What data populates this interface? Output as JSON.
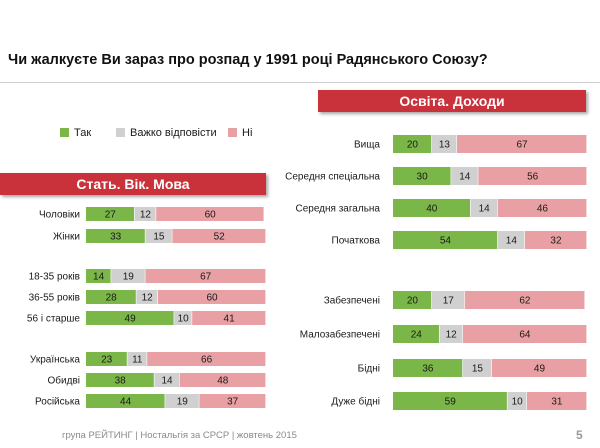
{
  "title": "Чи жалкуєте Ви зараз про розпад у 1991 році Радянського Союзу?",
  "banners": {
    "left": "Стать. Вік. Мова",
    "right": "Освіта. Доходи"
  },
  "legend": [
    {
      "label": "Так",
      "color": "#7ab648"
    },
    {
      "label": "Важко відповісти",
      "color": "#d0d0d0"
    },
    {
      "label": "Ні",
      "color": "#e8a0a4"
    }
  ],
  "footer": "група РЕЙТИНГ | Ностальгія за СРСР | жовтень 2015",
  "page_number": "5",
  "chart_data": [
    {
      "type": "bar",
      "stacked": true,
      "orientation": "horizontal",
      "title": "Стать. Вік. Мова",
      "categories": [
        "Чоловіки",
        "Жінки",
        "18-35 років",
        "36-55 років",
        "56 і старше",
        "Українська",
        "Обидві",
        "Російська"
      ],
      "series": [
        {
          "name": "Так",
          "values": [
            27,
            33,
            14,
            28,
            49,
            23,
            38,
            44
          ]
        },
        {
          "name": "Важко відповісти",
          "values": [
            12,
            15,
            19,
            12,
            10,
            11,
            14,
            19
          ]
        },
        {
          "name": "Ні",
          "values": [
            60,
            52,
            67,
            60,
            41,
            66,
            48,
            37
          ]
        }
      ]
    },
    {
      "type": "bar",
      "stacked": true,
      "orientation": "horizontal",
      "title": "Освіта. Доходи",
      "categories": [
        "Вища",
        "Середня спеціальна",
        "Середня загальна",
        "Початкова",
        "Забезпечені",
        "Малозабезпечені",
        "Бідні",
        "Дуже бідні"
      ],
      "series": [
        {
          "name": "Так",
          "values": [
            20,
            30,
            40,
            54,
            20,
            24,
            36,
            59
          ]
        },
        {
          "name": "Важко відповісти",
          "values": [
            13,
            14,
            14,
            14,
            17,
            12,
            15,
            10
          ]
        },
        {
          "name": "Ні",
          "values": [
            67,
            56,
            46,
            32,
            62,
            64,
            49,
            31
          ]
        }
      ]
    }
  ]
}
